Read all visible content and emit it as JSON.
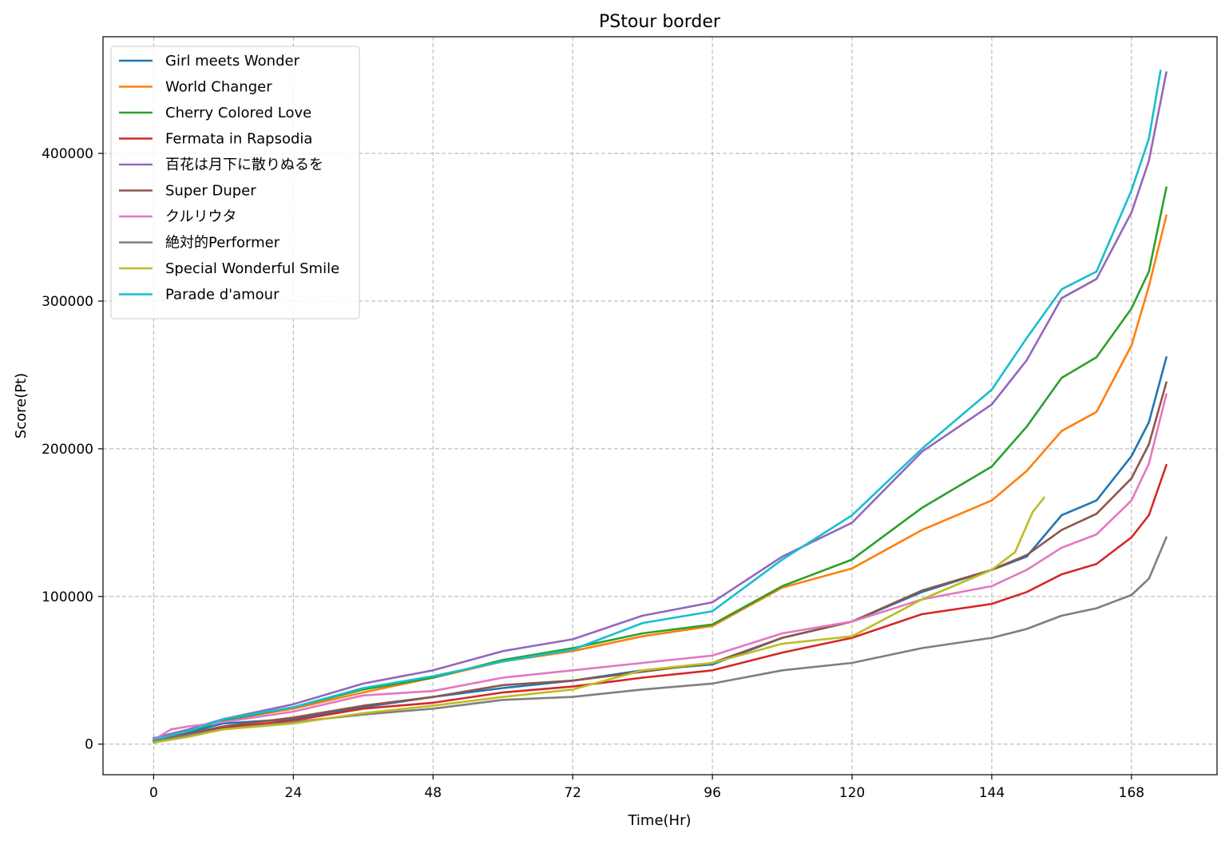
{
  "chart_data": {
    "type": "line",
    "title": "PStour border",
    "xlabel": "Time(Hr)",
    "ylabel": "Score(Pt)",
    "xlim": [
      -8.7,
      182.7
    ],
    "ylim": [
      -20700,
      479000
    ],
    "xticks": [
      0,
      24,
      48,
      72,
      96,
      120,
      144,
      168
    ],
    "yticks": [
      0,
      100000,
      200000,
      300000,
      400000
    ],
    "ytick_labels": [
      "0",
      "100000",
      "200000",
      "300000",
      "400000"
    ],
    "grid": true,
    "legend_position": "top-left",
    "series": [
      {
        "name": "Girl meets Wonder",
        "color": "#1f77b4",
        "points": [
          [
            0,
            3000
          ],
          [
            6,
            8000
          ],
          [
            12,
            14000
          ],
          [
            24,
            17000
          ],
          [
            36,
            25000
          ],
          [
            48,
            32000
          ],
          [
            60,
            38000
          ],
          [
            72,
            43000
          ],
          [
            84,
            50000
          ],
          [
            96,
            54000
          ],
          [
            108,
            72000
          ],
          [
            120,
            83000
          ],
          [
            132,
            103000
          ],
          [
            144,
            118000
          ],
          [
            150,
            127000
          ],
          [
            156,
            155000
          ],
          [
            162,
            165000
          ],
          [
            168,
            195000
          ],
          [
            171,
            218000
          ],
          [
            174,
            262000
          ]
        ]
      },
      {
        "name": "World Changer",
        "color": "#ff7f0e",
        "points": [
          [
            0,
            3000
          ],
          [
            6,
            9000
          ],
          [
            12,
            16000
          ],
          [
            24,
            24000
          ],
          [
            36,
            35000
          ],
          [
            48,
            45000
          ],
          [
            60,
            56000
          ],
          [
            72,
            63000
          ],
          [
            84,
            73000
          ],
          [
            96,
            80000
          ],
          [
            108,
            106000
          ],
          [
            120,
            119000
          ],
          [
            132,
            145000
          ],
          [
            144,
            165000
          ],
          [
            150,
            185000
          ],
          [
            156,
            212000
          ],
          [
            162,
            225000
          ],
          [
            168,
            270000
          ],
          [
            171,
            310000
          ],
          [
            174,
            358000
          ]
        ]
      },
      {
        "name": "Cherry Colored Love",
        "color": "#2ca02c",
        "points": [
          [
            0,
            3000
          ],
          [
            6,
            9000
          ],
          [
            12,
            16000
          ],
          [
            24,
            25000
          ],
          [
            36,
            37000
          ],
          [
            48,
            45000
          ],
          [
            60,
            57000
          ],
          [
            72,
            65000
          ],
          [
            84,
            75000
          ],
          [
            96,
            81000
          ],
          [
            108,
            107000
          ],
          [
            120,
            125000
          ],
          [
            132,
            160000
          ],
          [
            144,
            188000
          ],
          [
            150,
            215000
          ],
          [
            156,
            248000
          ],
          [
            162,
            262000
          ],
          [
            168,
            295000
          ],
          [
            171,
            320000
          ],
          [
            174,
            377000
          ]
        ]
      },
      {
        "name": "Fermata in Rapsodia",
        "color": "#d62728",
        "points": [
          [
            0,
            2000
          ],
          [
            6,
            6000
          ],
          [
            12,
            11000
          ],
          [
            24,
            16000
          ],
          [
            36,
            24000
          ],
          [
            48,
            28000
          ],
          [
            60,
            35000
          ],
          [
            72,
            39000
          ],
          [
            84,
            45000
          ],
          [
            96,
            50000
          ],
          [
            108,
            62000
          ],
          [
            120,
            72000
          ],
          [
            132,
            88000
          ],
          [
            144,
            95000
          ],
          [
            150,
            103000
          ],
          [
            156,
            115000
          ],
          [
            162,
            122000
          ],
          [
            168,
            140000
          ],
          [
            171,
            155000
          ],
          [
            174,
            189000
          ]
        ]
      },
      {
        "name": "百花は月下に散りぬるを",
        "color": "#9467bd",
        "points": [
          [
            0,
            4000
          ],
          [
            6,
            10000
          ],
          [
            12,
            17000
          ],
          [
            24,
            27000
          ],
          [
            36,
            41000
          ],
          [
            48,
            50000
          ],
          [
            60,
            63000
          ],
          [
            72,
            71000
          ],
          [
            84,
            87000
          ],
          [
            96,
            96000
          ],
          [
            108,
            127000
          ],
          [
            120,
            150000
          ],
          [
            132,
            198000
          ],
          [
            144,
            230000
          ],
          [
            150,
            260000
          ],
          [
            156,
            302000
          ],
          [
            162,
            315000
          ],
          [
            168,
            360000
          ],
          [
            171,
            395000
          ],
          [
            174,
            455000
          ]
        ]
      },
      {
        "name": "Super Duper",
        "color": "#8c564b",
        "points": [
          [
            0,
            2000
          ],
          [
            6,
            7000
          ],
          [
            12,
            12000
          ],
          [
            24,
            18000
          ],
          [
            36,
            26000
          ],
          [
            48,
            32000
          ],
          [
            60,
            40000
          ],
          [
            72,
            43000
          ],
          [
            84,
            49000
          ],
          [
            96,
            55000
          ],
          [
            108,
            72000
          ],
          [
            120,
            83000
          ],
          [
            132,
            104000
          ],
          [
            144,
            118000
          ],
          [
            150,
            128000
          ],
          [
            156,
            145000
          ],
          [
            162,
            156000
          ],
          [
            168,
            180000
          ],
          [
            171,
            203000
          ],
          [
            174,
            245000
          ]
        ]
      },
      {
        "name": "クルリウタ",
        "color": "#e377c2",
        "points": [
          [
            0,
            3000
          ],
          [
            3,
            10000
          ],
          [
            6,
            12000
          ],
          [
            12,
            15000
          ],
          [
            24,
            22000
          ],
          [
            36,
            33000
          ],
          [
            48,
            36000
          ],
          [
            60,
            45000
          ],
          [
            72,
            50000
          ],
          [
            84,
            55000
          ],
          [
            96,
            60000
          ],
          [
            108,
            75000
          ],
          [
            120,
            83000
          ],
          [
            132,
            98000
          ],
          [
            144,
            107000
          ],
          [
            150,
            118000
          ],
          [
            156,
            133000
          ],
          [
            162,
            142000
          ],
          [
            168,
            165000
          ],
          [
            171,
            190000
          ],
          [
            174,
            237000
          ]
        ]
      },
      {
        "name": "絶対的Performer",
        "color": "#7f7f7f",
        "points": [
          [
            0,
            2000
          ],
          [
            6,
            6000
          ],
          [
            12,
            10000
          ],
          [
            24,
            15000
          ],
          [
            36,
            20000
          ],
          [
            48,
            24000
          ],
          [
            60,
            30000
          ],
          [
            72,
            32000
          ],
          [
            84,
            37000
          ],
          [
            96,
            41000
          ],
          [
            108,
            50000
          ],
          [
            120,
            55000
          ],
          [
            132,
            65000
          ],
          [
            144,
            72000
          ],
          [
            150,
            78000
          ],
          [
            156,
            87000
          ],
          [
            162,
            92000
          ],
          [
            168,
            101000
          ],
          [
            171,
            112000
          ],
          [
            174,
            140000
          ]
        ]
      },
      {
        "name": "Special Wonderful Smile",
        "color": "#bcbd22",
        "points": [
          [
            0,
            1000
          ],
          [
            6,
            5000
          ],
          [
            12,
            10000
          ],
          [
            24,
            14000
          ],
          [
            36,
            21000
          ],
          [
            48,
            26000
          ],
          [
            60,
            32000
          ],
          [
            72,
            37000
          ],
          [
            84,
            50000
          ],
          [
            96,
            55000
          ],
          [
            108,
            68000
          ],
          [
            120,
            73000
          ],
          [
            132,
            98000
          ],
          [
            144,
            118000
          ],
          [
            148,
            130000
          ],
          [
            151,
            157000
          ],
          [
            153,
            167000
          ]
        ]
      },
      {
        "name": "Parade d'amour",
        "color": "#17becf",
        "points": [
          [
            0,
            3000
          ],
          [
            6,
            9000
          ],
          [
            12,
            17000
          ],
          [
            24,
            25000
          ],
          [
            36,
            38000
          ],
          [
            48,
            46000
          ],
          [
            60,
            56000
          ],
          [
            72,
            64000
          ],
          [
            84,
            82000
          ],
          [
            96,
            90000
          ],
          [
            108,
            125000
          ],
          [
            120,
            155000
          ],
          [
            132,
            200000
          ],
          [
            144,
            240000
          ],
          [
            150,
            275000
          ],
          [
            156,
            308000
          ],
          [
            162,
            320000
          ],
          [
            168,
            375000
          ],
          [
            171,
            410000
          ],
          [
            173,
            456000
          ]
        ]
      }
    ]
  }
}
